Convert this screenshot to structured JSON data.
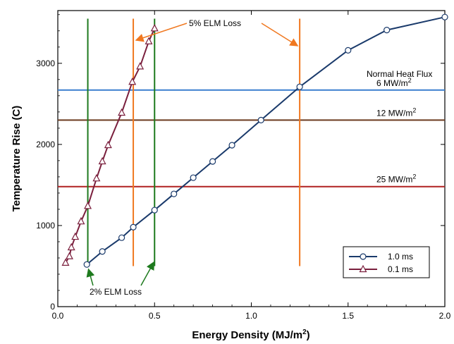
{
  "chart_data": {
    "type": "line",
    "xlabel": "Energy Density (MJ/m",
    "xlabel_sup": "2",
    "xlabel_end": ")",
    "ylabel": "Temperature Rise (C)",
    "xlim": [
      0,
      2.0
    ],
    "ylim": [
      0,
      3650
    ],
    "x_ticks": [
      0,
      0.5,
      1.0,
      1.5,
      2.0
    ],
    "x_tick_labels": [
      "0.0",
      "0.5",
      "1.0",
      "1.5",
      "2.0"
    ],
    "y_ticks": [
      0,
      1000,
      2000,
      3000
    ],
    "y_tick_labels": [
      "0",
      "1000",
      "2000",
      "3000"
    ],
    "grid": false,
    "legend_position": "bottom-right",
    "series": [
      {
        "name": "1.0 ms",
        "color": "#1a3a6b",
        "marker": "circle",
        "x": [
          0.15,
          0.23,
          0.33,
          0.39,
          0.5,
          0.6,
          0.7,
          0.8,
          0.9,
          1.05,
          1.25,
          1.5,
          1.7,
          2.0
        ],
        "y": [
          520,
          680,
          850,
          980,
          1190,
          1390,
          1590,
          1790,
          1990,
          2300,
          2710,
          3160,
          3410,
          3570
        ]
      },
      {
        "name": "0.1 ms",
        "color": "#7a1f3d",
        "marker": "triangle",
        "x": [
          0.04,
          0.06,
          0.07,
          0.09,
          0.12,
          0.155,
          0.2,
          0.23,
          0.26,
          0.33,
          0.385,
          0.425,
          0.47,
          0.5
        ],
        "y": [
          540,
          620,
          730,
          860,
          1050,
          1240,
          1580,
          1790,
          1990,
          2390,
          2770,
          2960,
          3270,
          3430
        ]
      }
    ],
    "heat_flux_lines": [
      {
        "label": "6 MW/m",
        "sup": "2",
        "y": 2670,
        "color": "#3a7fcf"
      },
      {
        "label": "12 MW/m",
        "sup": "2",
        "y": 2300,
        "color": "#6b3a1f"
      },
      {
        "label": "25 MW/m",
        "sup": "2",
        "y": 1480,
        "color": "#b02020"
      }
    ],
    "normal_heat_flux_label": "Normal Heat Flux",
    "elm_5": {
      "label": "5% ELM Loss",
      "color": "#f07820",
      "x_lines": [
        0.39,
        1.25
      ],
      "y_range": [
        500,
        3550
      ]
    },
    "elm_2": {
      "label": "2% ELM Loss",
      "color": "#1e7a1e",
      "x_lines": [
        0.155,
        0.5
      ],
      "y_range": [
        500,
        3550
      ]
    }
  }
}
